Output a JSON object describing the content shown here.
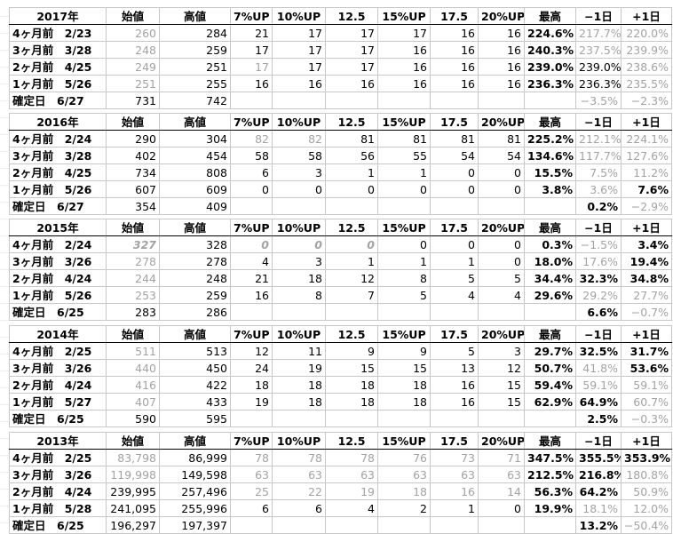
{
  "headers": {
    "open": "始値",
    "high": "高値",
    "up7": "7%UP",
    "up10": "10%UP",
    "up125": "12.5",
    "up15": "15%UP",
    "up175": "17.5",
    "up20": "20%UP",
    "max": "最高",
    "d_minus": "−1日",
    "d_plus": "+1日"
  },
  "colors": {
    "highlight": "#ff9fd7",
    "faded_text": "#a3a3a3"
  },
  "blocks": [
    {
      "year": "2017年",
      "rows": [
        {
          "label": "4ヶ月前　2/23",
          "open": "260",
          "high": "284",
          "up": [
            "21",
            "17",
            "17",
            "17",
            "16",
            "16"
          ],
          "max": "224.6%",
          "dm": "217.7%",
          "dp": "220.0%"
        },
        {
          "label": "3ヶ月前　3/28",
          "open": "248",
          "high": "259",
          "up": [
            "17",
            "17",
            "17",
            "16",
            "16",
            "16"
          ],
          "max": "240.3%",
          "dm": "237.5%",
          "dp": "239.9%"
        },
        {
          "label": "2ヶ月前　4/25",
          "open": "249",
          "high": "251",
          "up": [
            "17",
            "17",
            "17",
            "16",
            "16",
            "16"
          ],
          "max": "239.0%",
          "dm": "239.0%",
          "dp": "238.6%"
        },
        {
          "label": "1ヶ月前　5/26",
          "open": "251",
          "high": "255",
          "up": [
            "16",
            "16",
            "16",
            "16",
            "16",
            "16"
          ],
          "max": "236.3%",
          "dm": "236.3%",
          "dp": "235.5%"
        }
      ],
      "confirm": {
        "label": "確定日　6/27",
        "open": "731",
        "high": "742",
        "dm": "−3.5%",
        "dp": "−2.3%"
      }
    },
    {
      "year": "2016年",
      "rows": [
        {
          "label": "4ヶ月前　2/24",
          "open": "290",
          "high": "304",
          "up": [
            "82",
            "82",
            "81",
            "81",
            "81",
            "81"
          ],
          "max": "225.2%",
          "dm": "212.1%",
          "dp": "224.1%"
        },
        {
          "label": "3ヶ月前　3/28",
          "open": "402",
          "high": "454",
          "up": [
            "58",
            "58",
            "56",
            "55",
            "54",
            "54"
          ],
          "max": "134.6%",
          "dm": "117.7%",
          "dp": "127.6%"
        },
        {
          "label": "2ヶ月前　4/25",
          "open": "734",
          "high": "808",
          "up": [
            "6",
            "3",
            "1",
            "1",
            "0",
            "0"
          ],
          "max": "15.5%",
          "dm": "7.5%",
          "dp": "11.2%"
        },
        {
          "label": "1ヶ月前　5/26",
          "open": "607",
          "high": "609",
          "up": [
            "0",
            "0",
            "0",
            "0",
            "0",
            "0"
          ],
          "max": "3.8%",
          "dm": "3.6%",
          "dp": "7.6%"
        }
      ],
      "confirm": {
        "label": "確定日　6/27",
        "open": "354",
        "high": "409",
        "dm": "0.2%",
        "dp": "−2.9%"
      }
    },
    {
      "year": "2015年",
      "rows": [
        {
          "label": "4ヶ月前　2/24",
          "open": "327",
          "high": "328",
          "up": [
            "0",
            "0",
            "0",
            "0",
            "0",
            "0"
          ],
          "max": "0.3%",
          "dm": "−1.5%",
          "dp": "3.4%"
        },
        {
          "label": "3ヶ月前　3/26",
          "open": "278",
          "high": "278",
          "up": [
            "4",
            "3",
            "1",
            "1",
            "1",
            "0"
          ],
          "max": "18.0%",
          "dm": "17.6%",
          "dp": "19.4%"
        },
        {
          "label": "2ヶ月前　4/24",
          "open": "244",
          "high": "248",
          "up": [
            "21",
            "18",
            "12",
            "8",
            "5",
            "5"
          ],
          "max": "34.4%",
          "dm": "32.3%",
          "dp": "34.8%"
        },
        {
          "label": "1ヶ月前　5/26",
          "open": "253",
          "high": "259",
          "up": [
            "16",
            "8",
            "7",
            "5",
            "4",
            "4"
          ],
          "max": "29.6%",
          "dm": "29.2%",
          "dp": "27.7%"
        }
      ],
      "confirm": {
        "label": "確定日　6/25",
        "open": "283",
        "high": "286",
        "dm": "6.6%",
        "dp": "−0.7%"
      }
    },
    {
      "year": "2014年",
      "rows": [
        {
          "label": "4ヶ月前　2/25",
          "open": "511",
          "high": "513",
          "up": [
            "12",
            "11",
            "9",
            "9",
            "5",
            "3"
          ],
          "max": "29.7%",
          "dm": "32.5%",
          "dp": "31.7%"
        },
        {
          "label": "3ヶ月前　3/26",
          "open": "440",
          "high": "450",
          "up": [
            "24",
            "19",
            "15",
            "15",
            "13",
            "12"
          ],
          "max": "50.7%",
          "dm": "41.8%",
          "dp": "53.6%"
        },
        {
          "label": "2ヶ月前　4/24",
          "open": "416",
          "high": "422",
          "up": [
            "18",
            "18",
            "18",
            "18",
            "16",
            "15"
          ],
          "max": "59.4%",
          "dm": "59.1%",
          "dp": "59.1%"
        },
        {
          "label": "1ヶ月前　5/27",
          "open": "407",
          "high": "433",
          "up": [
            "19",
            "18",
            "18",
            "18",
            "16",
            "15"
          ],
          "max": "62.9%",
          "dm": "64.9%",
          "dp": "60.7%"
        }
      ],
      "confirm": {
        "label": "確定日　6/25",
        "open": "590",
        "high": "595",
        "dm": "2.5%",
        "dp": "−0.3%"
      }
    },
    {
      "year": "2013年",
      "rows": [
        {
          "label": "4ヶ月前　2/25",
          "open": "83,798",
          "high": "86,999",
          "up": [
            "78",
            "78",
            "78",
            "76",
            "73",
            "71"
          ],
          "max": "347.5%",
          "dm": "355.5%",
          "dp": "353.9%"
        },
        {
          "label": "3ヶ月前　3/26",
          "open": "119,998",
          "high": "149,598",
          "up": [
            "63",
            "63",
            "63",
            "63",
            "63",
            "63"
          ],
          "max": "212.5%",
          "dm": "216.8%",
          "dp": "180.8%"
        },
        {
          "label": "2ヶ月前　4/24",
          "open": "239,995",
          "high": "257,496",
          "up": [
            "25",
            "22",
            "19",
            "18",
            "16",
            "14"
          ],
          "max": "56.3%",
          "dm": "64.2%",
          "dp": "50.9%"
        },
        {
          "label": "1ヶ月前　5/28",
          "open": "241,095",
          "high": "255,996",
          "up": [
            "6",
            "6",
            "4",
            "2",
            "1",
            "0"
          ],
          "max": "19.9%",
          "dm": "18.1%",
          "dp": "12.0%"
        }
      ],
      "confirm": {
        "label": "確定日　6/25",
        "open": "196,297",
        "high": "197,397",
        "dm": "13.2%",
        "dp": "−50.4%"
      }
    }
  ]
}
